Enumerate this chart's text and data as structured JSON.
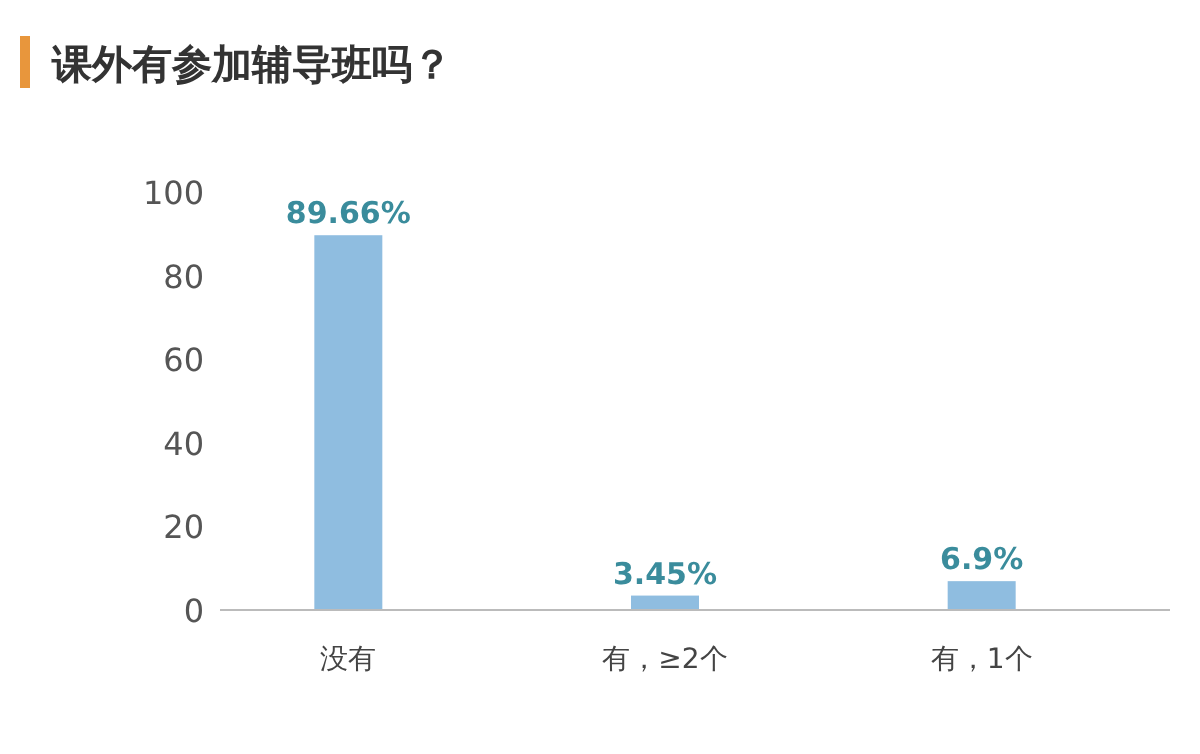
{
  "chart_data": {
    "type": "bar",
    "title": "课外有参加辅导班吗？",
    "categories": [
      "没有",
      "有，≥2个",
      "有，1个"
    ],
    "values": [
      89.66,
      3.45,
      6.9
    ],
    "value_labels": [
      "89.66%",
      "3.45%",
      "6.9%"
    ],
    "color": "#8fbde0",
    "ylim": [
      0,
      100
    ],
    "yticks": [
      0,
      20,
      40,
      60,
      80,
      100
    ]
  }
}
